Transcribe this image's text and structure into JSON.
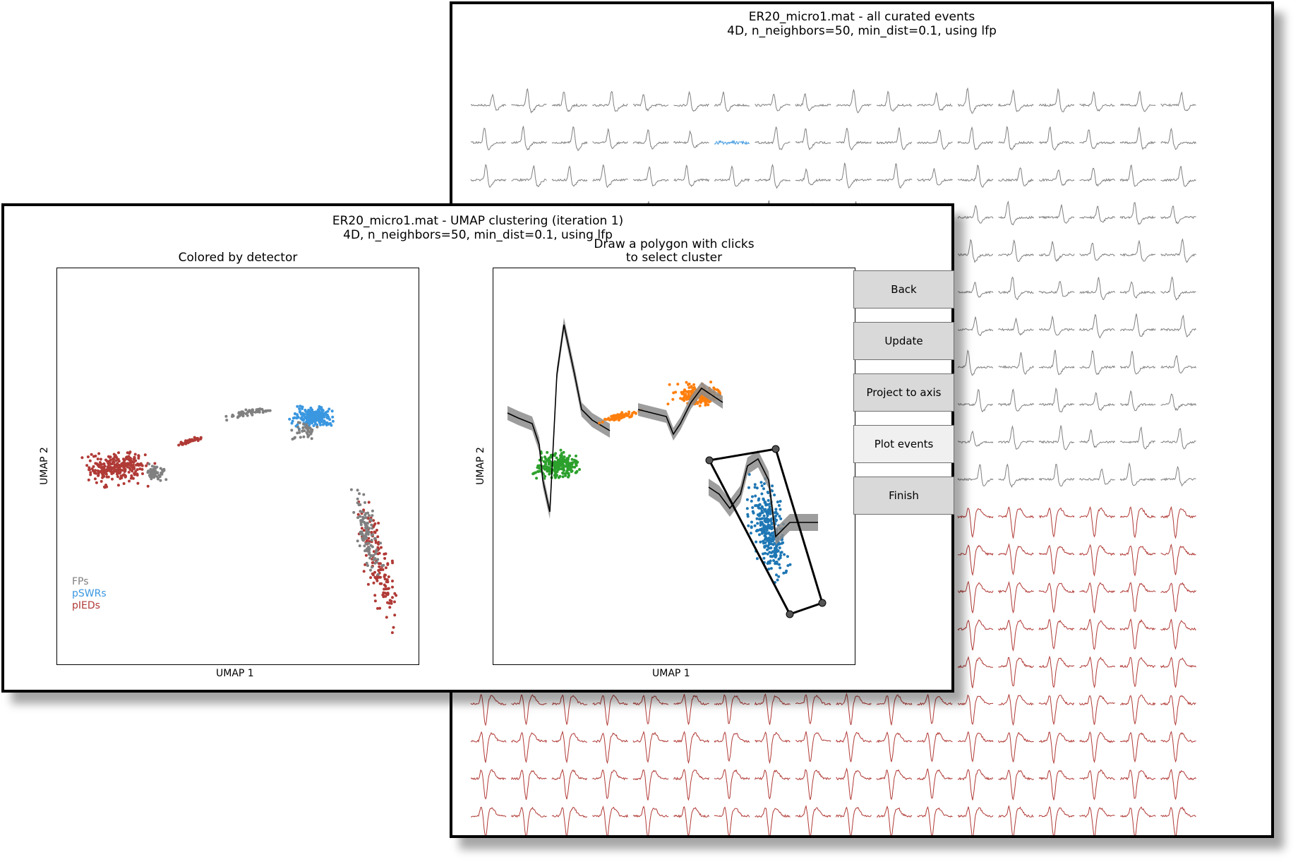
{
  "back_window": {
    "title": "ER20_micro1.mat - all curated events",
    "subtitle": "4D, n_neighbors=50, min_dist=0.1, using lfp",
    "colors": {
      "fp_trace": "#808080",
      "swr_trace": "#3a97e0",
      "ied_trace": "#b03a36"
    }
  },
  "front_window": {
    "title": "ER20_micro1.mat - UMAP clustering (iteration 1)",
    "subtitle": "4D, n_neighbors=50, min_dist=0.1, using lfp",
    "left_plot": {
      "title": "Colored by detector",
      "xlabel": "UMAP 1",
      "ylabel": "UMAP 2",
      "legend": [
        {
          "label": "FPs",
          "color": "#808080"
        },
        {
          "label": "pSWRs",
          "color": "#3a97e0"
        },
        {
          "label": "pIEDs",
          "color": "#b03a36"
        }
      ]
    },
    "right_plot": {
      "title_line1": "Draw a polygon with clicks",
      "title_line2": "to select cluster",
      "xlabel": "UMAP 1",
      "ylabel": "UMAP 2",
      "colors": {
        "green": "#2ca02c",
        "orange": "#ff7f0e",
        "blue": "#1f77b4",
        "shade": "#8c8c8c"
      }
    },
    "buttons": [
      "Back",
      "Update",
      "Project to axis",
      "Plot events",
      "Finish"
    ]
  }
}
